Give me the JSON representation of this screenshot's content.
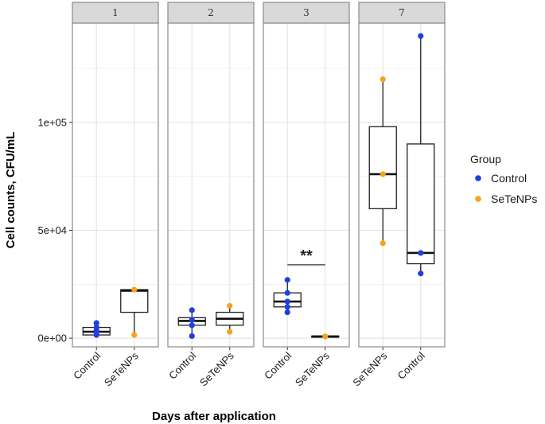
{
  "chart_data": {
    "type": "boxplot",
    "title": "",
    "xlabel": "Days after application",
    "ylabel": "Cell counts, CFU/mL",
    "ylim": [
      -4000,
      146000
    ],
    "yticks": [
      {
        "value": 0,
        "label": "0e+00"
      },
      {
        "value": 50000,
        "label": "5e+04"
      },
      {
        "value": 100000,
        "label": "1e+05"
      }
    ],
    "legend": {
      "title": "Group",
      "position": "right",
      "entries": [
        {
          "label": "Control",
          "color": "#1f3fe0"
        },
        {
          "label": "SeTeNPs",
          "color": "#f5a31a"
        }
      ]
    },
    "panels": [
      {
        "label": "1",
        "categories": [
          "Control",
          "SeTeNPs"
        ],
        "boxes": [
          {
            "group": "Control",
            "min": 1500,
            "q1": 1500,
            "median": 3000,
            "q3": 5000,
            "max": 7000,
            "points": [
              1500,
              2500,
              3500,
              5000,
              7000
            ]
          },
          {
            "group": "SeTeNPs",
            "min": 1500,
            "q1": 12000,
            "median": 22000,
            "q3": 22500,
            "max": 22500,
            "points": [
              1500,
              22500
            ]
          }
        ]
      },
      {
        "label": "2",
        "categories": [
          "Control",
          "SeTeNPs"
        ],
        "boxes": [
          {
            "group": "Control",
            "min": 1000,
            "q1": 6000,
            "median": 8000,
            "q3": 9500,
            "max": 13000,
            "points": [
              1000,
              6000,
              8500,
              13000
            ]
          },
          {
            "group": "SeTeNPs",
            "min": 3000,
            "q1": 6000,
            "median": 9000,
            "q3": 12000,
            "max": 15000,
            "points": [
              3000,
              15000
            ]
          }
        ]
      },
      {
        "label": "3",
        "categories": [
          "Control",
          "SeTeNPs"
        ],
        "boxes": [
          {
            "group": "Control",
            "min": 12000,
            "q1": 14500,
            "median": 17000,
            "q3": 21000,
            "max": 27000,
            "points": [
              12000,
              14500,
              17000,
              21000,
              27000
            ]
          },
          {
            "group": "SeTeNPs",
            "min": 500,
            "q1": 500,
            "median": 800,
            "q3": 1000,
            "max": 1200,
            "points": [
              800
            ]
          }
        ]
      },
      {
        "label": "7",
        "categories": [
          "SeTeNPs",
          "Control"
        ],
        "boxes": [
          {
            "group": "Control",
            "min": 30000,
            "q1": 34500,
            "median": 39500,
            "q3": 90000,
            "max": 140000,
            "points": [
              30000,
              39500,
              140000
            ]
          },
          {
            "group": "SeTeNPs",
            "min": 44000,
            "q1": 60000,
            "median": 76000,
            "q3": 98000,
            "max": 120000,
            "points": [
              44000,
              76000,
              120000
            ]
          }
        ]
      }
    ],
    "annotations": [
      {
        "panel": "3",
        "text": "**",
        "y": 34000
      }
    ]
  }
}
